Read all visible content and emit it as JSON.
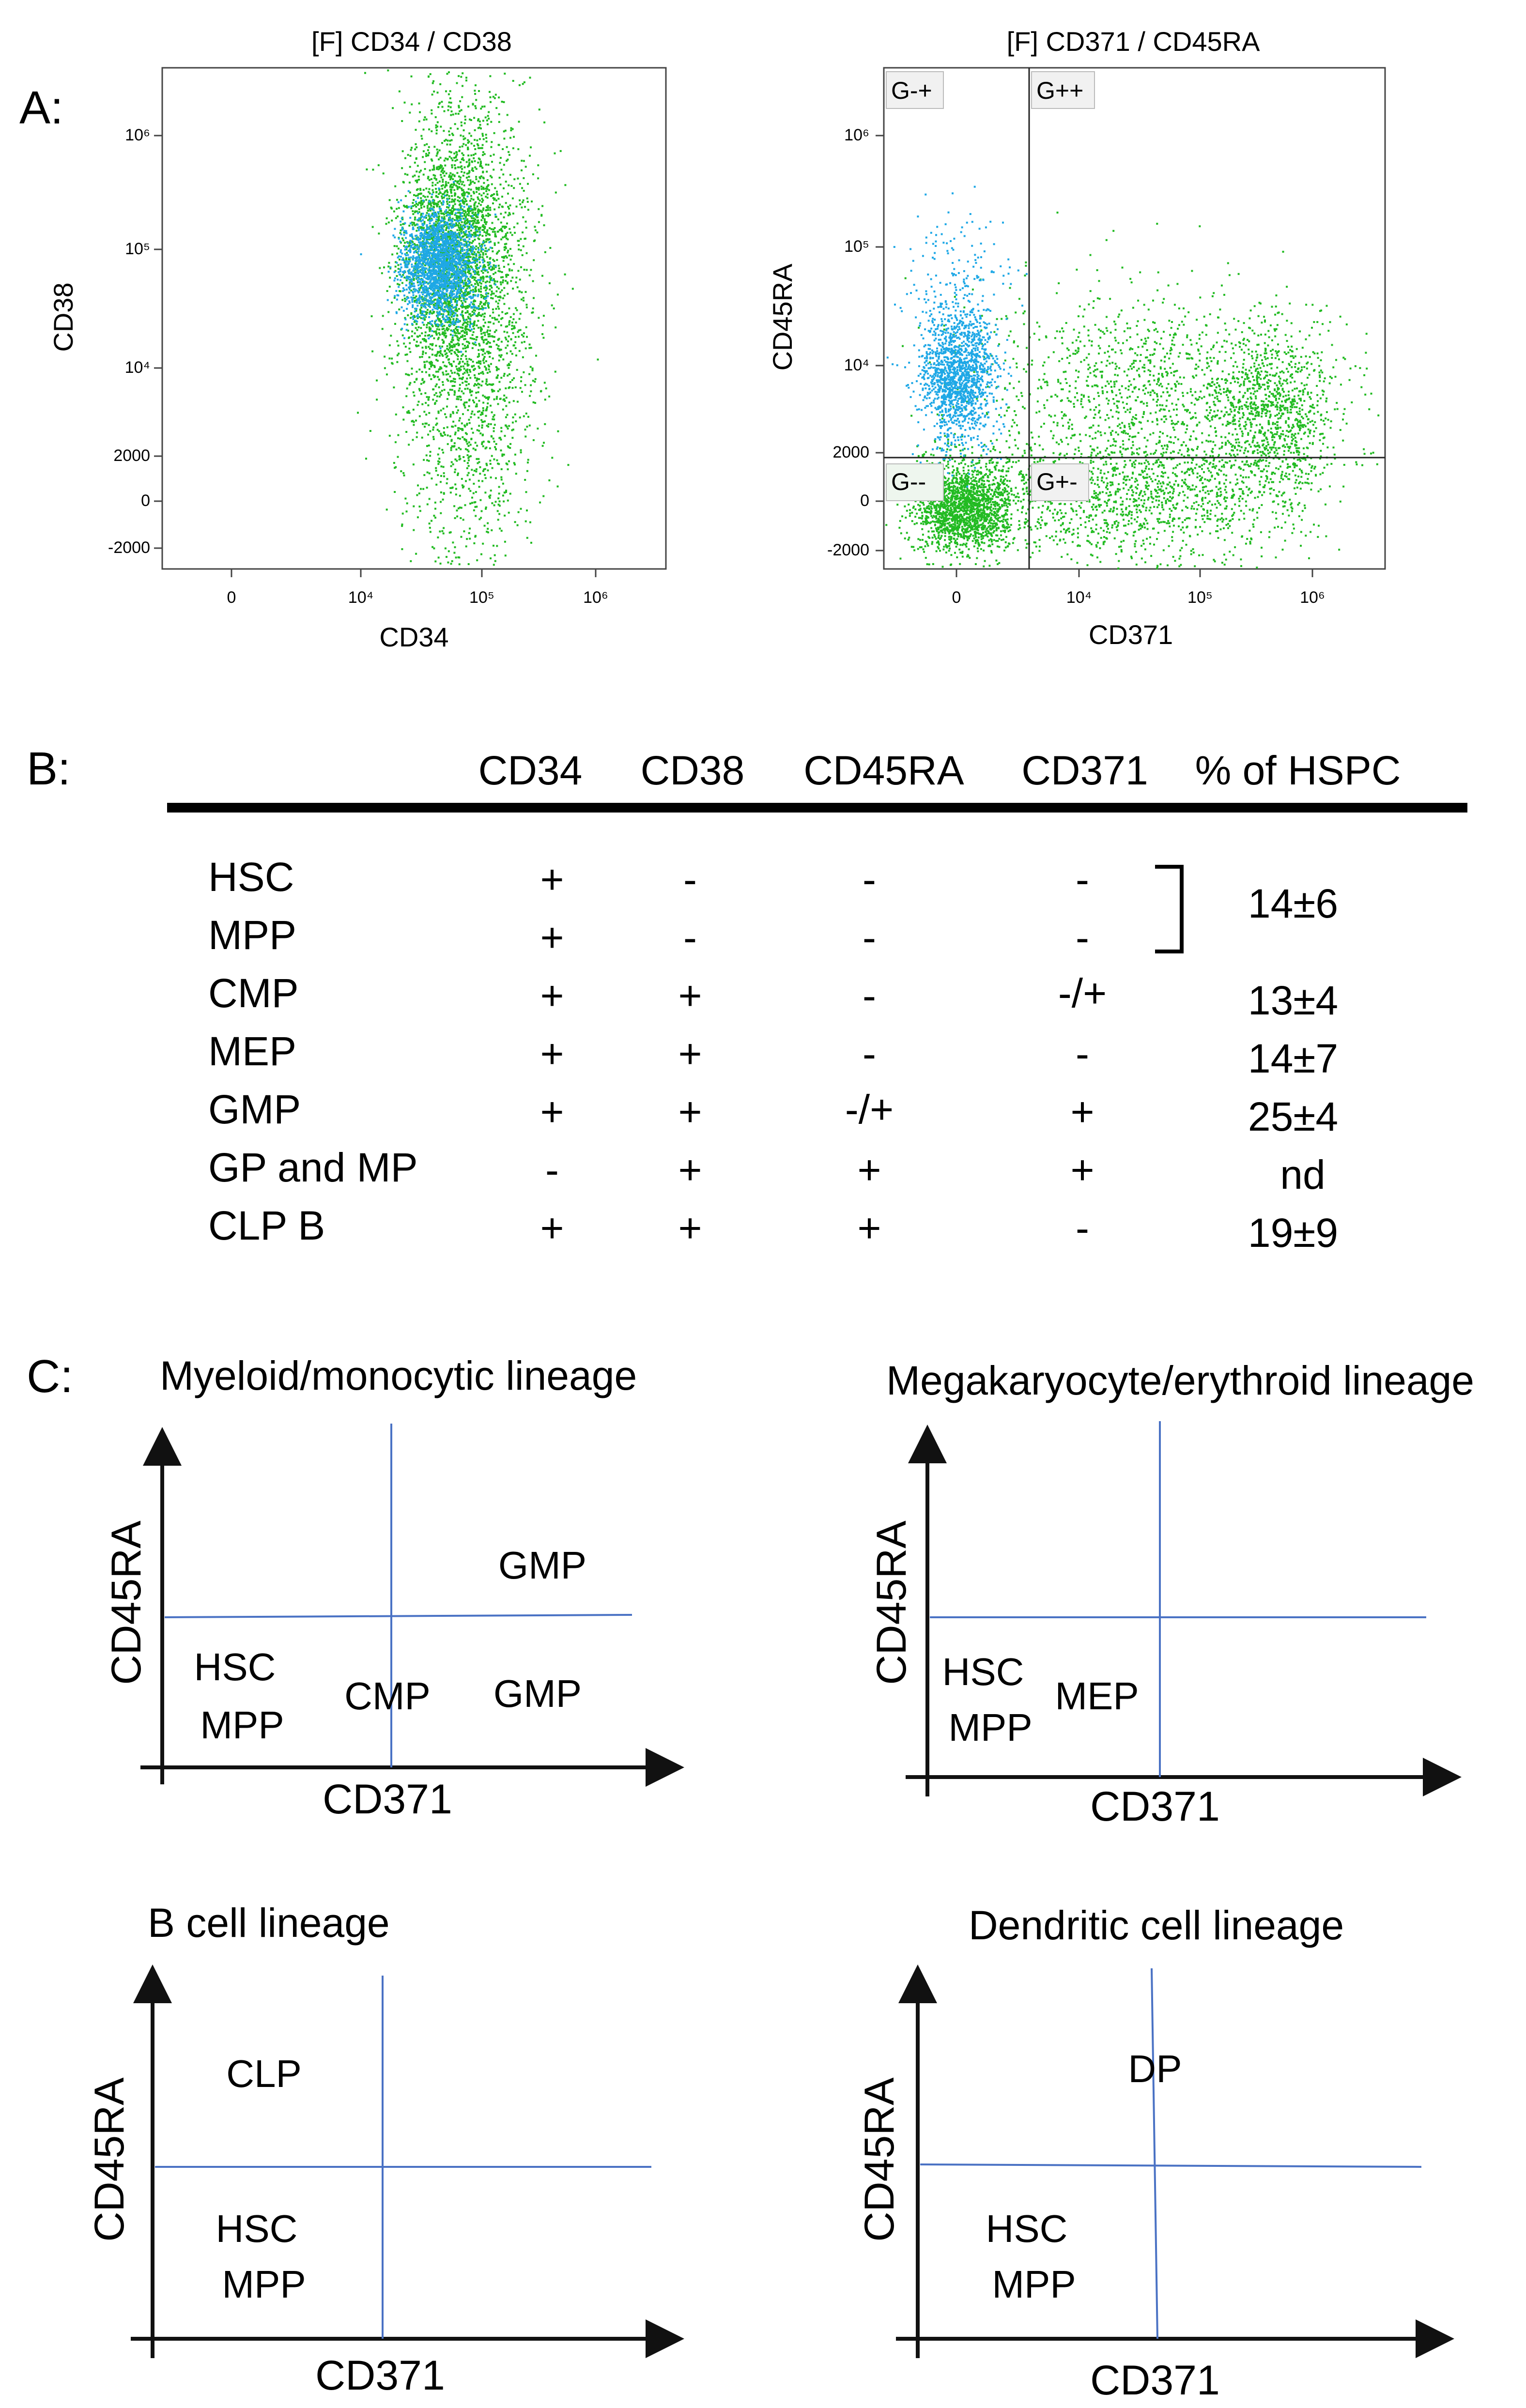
{
  "panel_labels": {
    "a": "A:",
    "b": "B:",
    "c": "C:"
  },
  "panel_a": {
    "plot1": {
      "title": "[F] CD34 / CD38",
      "xlabel": "CD34",
      "ylabel": "CD38",
      "xticks": [
        "0",
        "10⁴",
        "10⁵",
        "10⁶"
      ],
      "yticks": [
        "10⁶",
        "10⁵",
        "10⁴",
        "2000",
        "0",
        "-2000"
      ]
    },
    "plot2": {
      "title": "[F] CD371 / CD45RA",
      "xlabel": "CD371",
      "ylabel": "CD45RA",
      "xticks": [
        "0",
        "10⁴",
        "10⁵",
        "10⁶"
      ],
      "yticks": [
        "10⁶",
        "10⁵",
        "10⁴",
        "2000",
        "0",
        "-2000"
      ],
      "gates": [
        "G-+",
        "G++",
        "G--",
        "G+-"
      ]
    },
    "colors": {
      "green_population": "#22bb22",
      "blue_population": "#1fa8e6"
    }
  },
  "panel_b": {
    "headers": [
      "CD34",
      "CD38",
      "CD45RA",
      "CD371",
      "% of HSPC"
    ],
    "rows": [
      {
        "name": "HSC",
        "cd34": "+",
        "cd38": "-",
        "cd45ra": "-",
        "cd371": "-"
      },
      {
        "name": "MPP",
        "cd34": "+",
        "cd38": "-",
        "cd45ra": "-",
        "cd371": "-"
      },
      {
        "name": "CMP",
        "cd34": "+",
        "cd38": "+",
        "cd45ra": "-",
        "cd371": "-/+",
        "pct": "13±4"
      },
      {
        "name": "MEP",
        "cd34": "+",
        "cd38": "+",
        "cd45ra": "-",
        "cd371": "-",
        "pct": "14±7"
      },
      {
        "name": "GMP",
        "cd34": "+",
        "cd38": "+",
        "cd45ra": "-/+",
        "cd371": "+",
        "pct": "25±4"
      },
      {
        "name": "GP and MP",
        "cd34": "-",
        "cd38": "+",
        "cd45ra": "+",
        "cd371": "+",
        "pct": "nd"
      },
      {
        "name": "CLP B",
        "cd34": "+",
        "cd38": "+",
        "cd45ra": "+",
        "cd371": "-",
        "pct": "19±9"
      }
    ],
    "bracket_value": "14±6"
  },
  "panel_c": {
    "xlabel": "CD371",
    "ylabel": "CD45RA",
    "diagrams": [
      {
        "title": "Myeloid/monocytic lineage",
        "labels": [
          "GMP",
          "HSC",
          "MPP",
          "CMP",
          "GMP"
        ]
      },
      {
        "title": "Megakaryocyte/erythroid lineage",
        "labels": [
          "HSC",
          "MPP",
          "MEP"
        ]
      },
      {
        "title": "B cell lineage",
        "labels": [
          "CLP",
          "HSC",
          "MPP"
        ]
      },
      {
        "title": "Dendritic cell lineage",
        "labels": [
          "DP",
          "HSC",
          "MPP"
        ]
      }
    ],
    "line_color": "#4a72c4"
  }
}
